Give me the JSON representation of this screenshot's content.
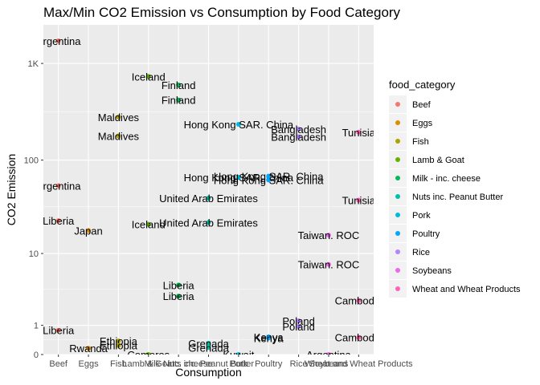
{
  "chart_data": {
    "type": "scatter",
    "title": "Max/Min CO2 Emission vs Consumption by Food Category",
    "xlabel": "Consumption",
    "ylabel": "CO2 Emission",
    "y_scale": "log10(x+1)",
    "x_ticks": [
      "Beef",
      "Eggs",
      "Fish",
      "Lamb & Goat",
      "Milk - inc. cheese",
      "Nuts inc. Peanut Butter",
      "Pork",
      "Poultry",
      "Rice",
      "Soybeans",
      "Wheat and Wheat Products"
    ],
    "y_ticks": [
      {
        "label": "0",
        "value": 0
      },
      {
        "label": "1",
        "value": 1
      },
      {
        "label": "10",
        "value": 10
      },
      {
        "label": "100",
        "value": 100
      },
      {
        "label": "1K",
        "value": 1000
      }
    ],
    "ylim": [
      0,
      2500
    ],
    "grid": true,
    "legend": {
      "title": "food_category",
      "position": "right",
      "items": [
        {
          "name": "Beef",
          "color": "#F8766D"
        },
        {
          "name": "Eggs",
          "color": "#DB8E00"
        },
        {
          "name": "Fish",
          "color": "#AEA200"
        },
        {
          "name": "Lamb & Goat",
          "color": "#64B200"
        },
        {
          "name": "Milk - inc. cheese",
          "color": "#00BD5C"
        },
        {
          "name": "Nuts inc. Peanut Butter",
          "color": "#00C1A7"
        },
        {
          "name": "Pork",
          "color": "#00BADE"
        },
        {
          "name": "Poultry",
          "color": "#00A6FF"
        },
        {
          "name": "Rice",
          "color": "#B385FF"
        },
        {
          "name": "Soybeans",
          "color": "#EF67EB"
        },
        {
          "name": "Wheat and Wheat Products",
          "color": "#FF63B6"
        }
      ]
    },
    "points": [
      {
        "category": "Beef",
        "x": "Beef",
        "y": 1712,
        "label": "Argentina"
      },
      {
        "category": "Beef",
        "x": "Beef",
        "y": 54,
        "label": "Argentina"
      },
      {
        "category": "Beef",
        "x": "Beef",
        "y": 23,
        "label": "Liberia"
      },
      {
        "category": "Beef",
        "x": "Beef",
        "y": 0.78,
        "label": "Liberia"
      },
      {
        "category": "Eggs",
        "x": "Eggs",
        "y": 18,
        "label": "Japan"
      },
      {
        "category": "Eggs",
        "x": "Eggs",
        "y": 0.16,
        "label": "Rwanda"
      },
      {
        "category": "Fish",
        "x": "Fish",
        "y": 280,
        "label": "Maldives"
      },
      {
        "category": "Fish",
        "x": "Fish",
        "y": 178,
        "label": "Maldives"
      },
      {
        "category": "Fish",
        "x": "Fish",
        "y": 0.38,
        "label": "Ethiopia"
      },
      {
        "category": "Fish",
        "x": "Fish",
        "y": 0.24,
        "label": "Ethiopia"
      },
      {
        "category": "Lamb & Goat",
        "x": "Lamb & Goat",
        "y": 735,
        "label": "Iceland"
      },
      {
        "category": "Lamb & Goat",
        "x": "Lamb & Goat",
        "y": 21,
        "label": "Iceland"
      },
      {
        "category": "Lamb & Goat",
        "x": "Lamb & Goat",
        "y": 0,
        "label": "Comoros"
      },
      {
        "category": "Milk - inc. cheese",
        "x": "Milk - inc. cheese",
        "y": 600,
        "label": "Finland"
      },
      {
        "category": "Milk - inc. cheese",
        "x": "Milk - inc. cheese",
        "y": 420,
        "label": "Finland"
      },
      {
        "category": "Milk - inc. cheese",
        "x": "Milk - inc. cheese",
        "y": 4.2,
        "label": "Liberia"
      },
      {
        "category": "Milk - inc. cheese",
        "x": "Milk - inc. cheese",
        "y": 3.0,
        "label": "Liberia"
      },
      {
        "category": "Nuts inc. Peanut Butter",
        "x": "Nuts inc. Peanut Butter",
        "y": 40,
        "label": "United Arab Emirates"
      },
      {
        "category": "Nuts inc. Peanut Butter",
        "x": "Nuts inc. Peanut Butter",
        "y": 22,
        "label": "United Arab Emirates"
      },
      {
        "category": "Nuts inc. Peanut Butter",
        "x": "Nuts inc. Peanut Butter",
        "y": 0.31,
        "label": "Grenada"
      },
      {
        "category": "Nuts inc. Peanut Butter",
        "x": "Nuts inc. Peanut Butter",
        "y": 0.18,
        "label": "Grenada"
      },
      {
        "category": "Pork",
        "x": "Pork",
        "y": 235,
        "label": "Hong Kong SAR. China"
      },
      {
        "category": "Pork",
        "x": "Pork",
        "y": 66,
        "label": "Hong Kong SAR. China"
      },
      {
        "category": "Pork",
        "x": "Pork",
        "y": 0,
        "label": "Kuwait"
      },
      {
        "category": "Poultry",
        "x": "Poultry",
        "y": 68,
        "label": "Hong Kong SAR. China"
      },
      {
        "category": "Poultry",
        "x": "Poultry",
        "y": 62,
        "label": "Hong Kong SAR. China"
      },
      {
        "category": "Poultry",
        "x": "Poultry",
        "y": 0.52,
        "label": "Kenya"
      },
      {
        "category": "Poultry",
        "x": "Poultry",
        "y": 0.48,
        "label": "Kenya"
      },
      {
        "category": "Rice",
        "x": "Rice",
        "y": 210,
        "label": "Bangladesh"
      },
      {
        "category": "Rice",
        "x": "Rice",
        "y": 175,
        "label": "Bangladesh"
      },
      {
        "category": "Rice",
        "x": "Rice",
        "y": 1.23,
        "label": "Poland"
      },
      {
        "category": "Rice",
        "x": "Rice",
        "y": 0.95,
        "label": "Poland"
      },
      {
        "category": "Soybeans",
        "x": "Soybeans",
        "y": 16,
        "label": "Taiwan. ROC"
      },
      {
        "category": "Soybeans",
        "x": "Soybeans",
        "y": 7.5,
        "label": "Taiwan. ROC"
      },
      {
        "category": "Soybeans",
        "x": "Soybeans",
        "y": 0,
        "label": "Argentina"
      },
      {
        "category": "Wheat and Wheat Products",
        "x": "Wheat and Wheat Products",
        "y": 195,
        "label": "Tunisia"
      },
      {
        "category": "Wheat and Wheat Products",
        "x": "Wheat and Wheat Products",
        "y": 38,
        "label": "Tunisia"
      },
      {
        "category": "Wheat and Wheat Products",
        "x": "Wheat and Wheat Products",
        "y": 2.6,
        "label": "Cambodia"
      },
      {
        "category": "Wheat and Wheat Products",
        "x": "Wheat and Wheat Products",
        "y": 0.5,
        "label": "Cambodia"
      }
    ]
  }
}
